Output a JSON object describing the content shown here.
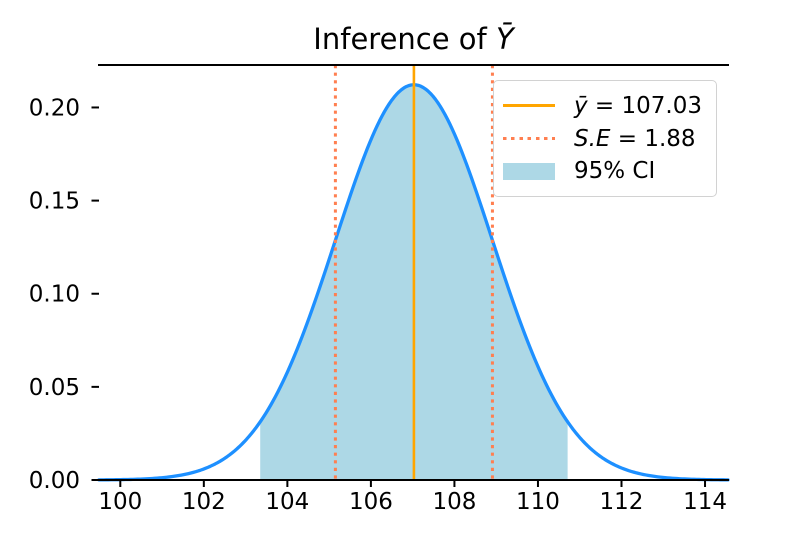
{
  "title": {
    "prefix": "Inference of ",
    "math_symbol": "Ȳ"
  },
  "legend": {
    "position": "upper right",
    "items": [
      {
        "var": "ȳ",
        "rest": " = 107.03",
        "swatch": "solid-line",
        "color": "#FFA500"
      },
      {
        "var": "S.E",
        "rest": " = 1.88",
        "swatch": "dotted-line",
        "color": "#FF7F50"
      },
      {
        "var": "",
        "rest": "95% CI",
        "swatch": "patch",
        "color": "#ADD8E6"
      }
    ]
  },
  "chart_data": {
    "type": "line",
    "subtype": "normal-distribution-pdf",
    "title": "Inference of Ȳ",
    "xlabel": "",
    "ylabel": "",
    "mean": 107.03,
    "se": 1.88,
    "peak_density": 0.212,
    "ci_level": "95%",
    "ci_bounds": [
      103.35,
      110.71
    ],
    "se_line_positions": [
      105.15,
      108.91
    ],
    "xlim": [
      99.49,
      114.55
    ],
    "ylim": [
      0,
      0.2228
    ],
    "x_ticks": [
      100,
      102,
      104,
      106,
      108,
      110,
      112,
      114
    ],
    "x_tick_labels": [
      "100",
      "102",
      "104",
      "106",
      "108",
      "110",
      "112",
      "114"
    ],
    "y_ticks": [
      0,
      0.05,
      0.1,
      0.15,
      0.2
    ],
    "y_tick_labels": [
      "0.00",
      "0.05",
      "0.10",
      "0.15",
      "0.20"
    ],
    "grid": false,
    "legend_position": "upper right",
    "colors": {
      "curve": "#1E90FF",
      "ci_fill": "#ADD8E6",
      "mean_line": "#FFA500",
      "se_line": "#FF7F50",
      "axis": "#000000",
      "text": "#000000"
    }
  }
}
